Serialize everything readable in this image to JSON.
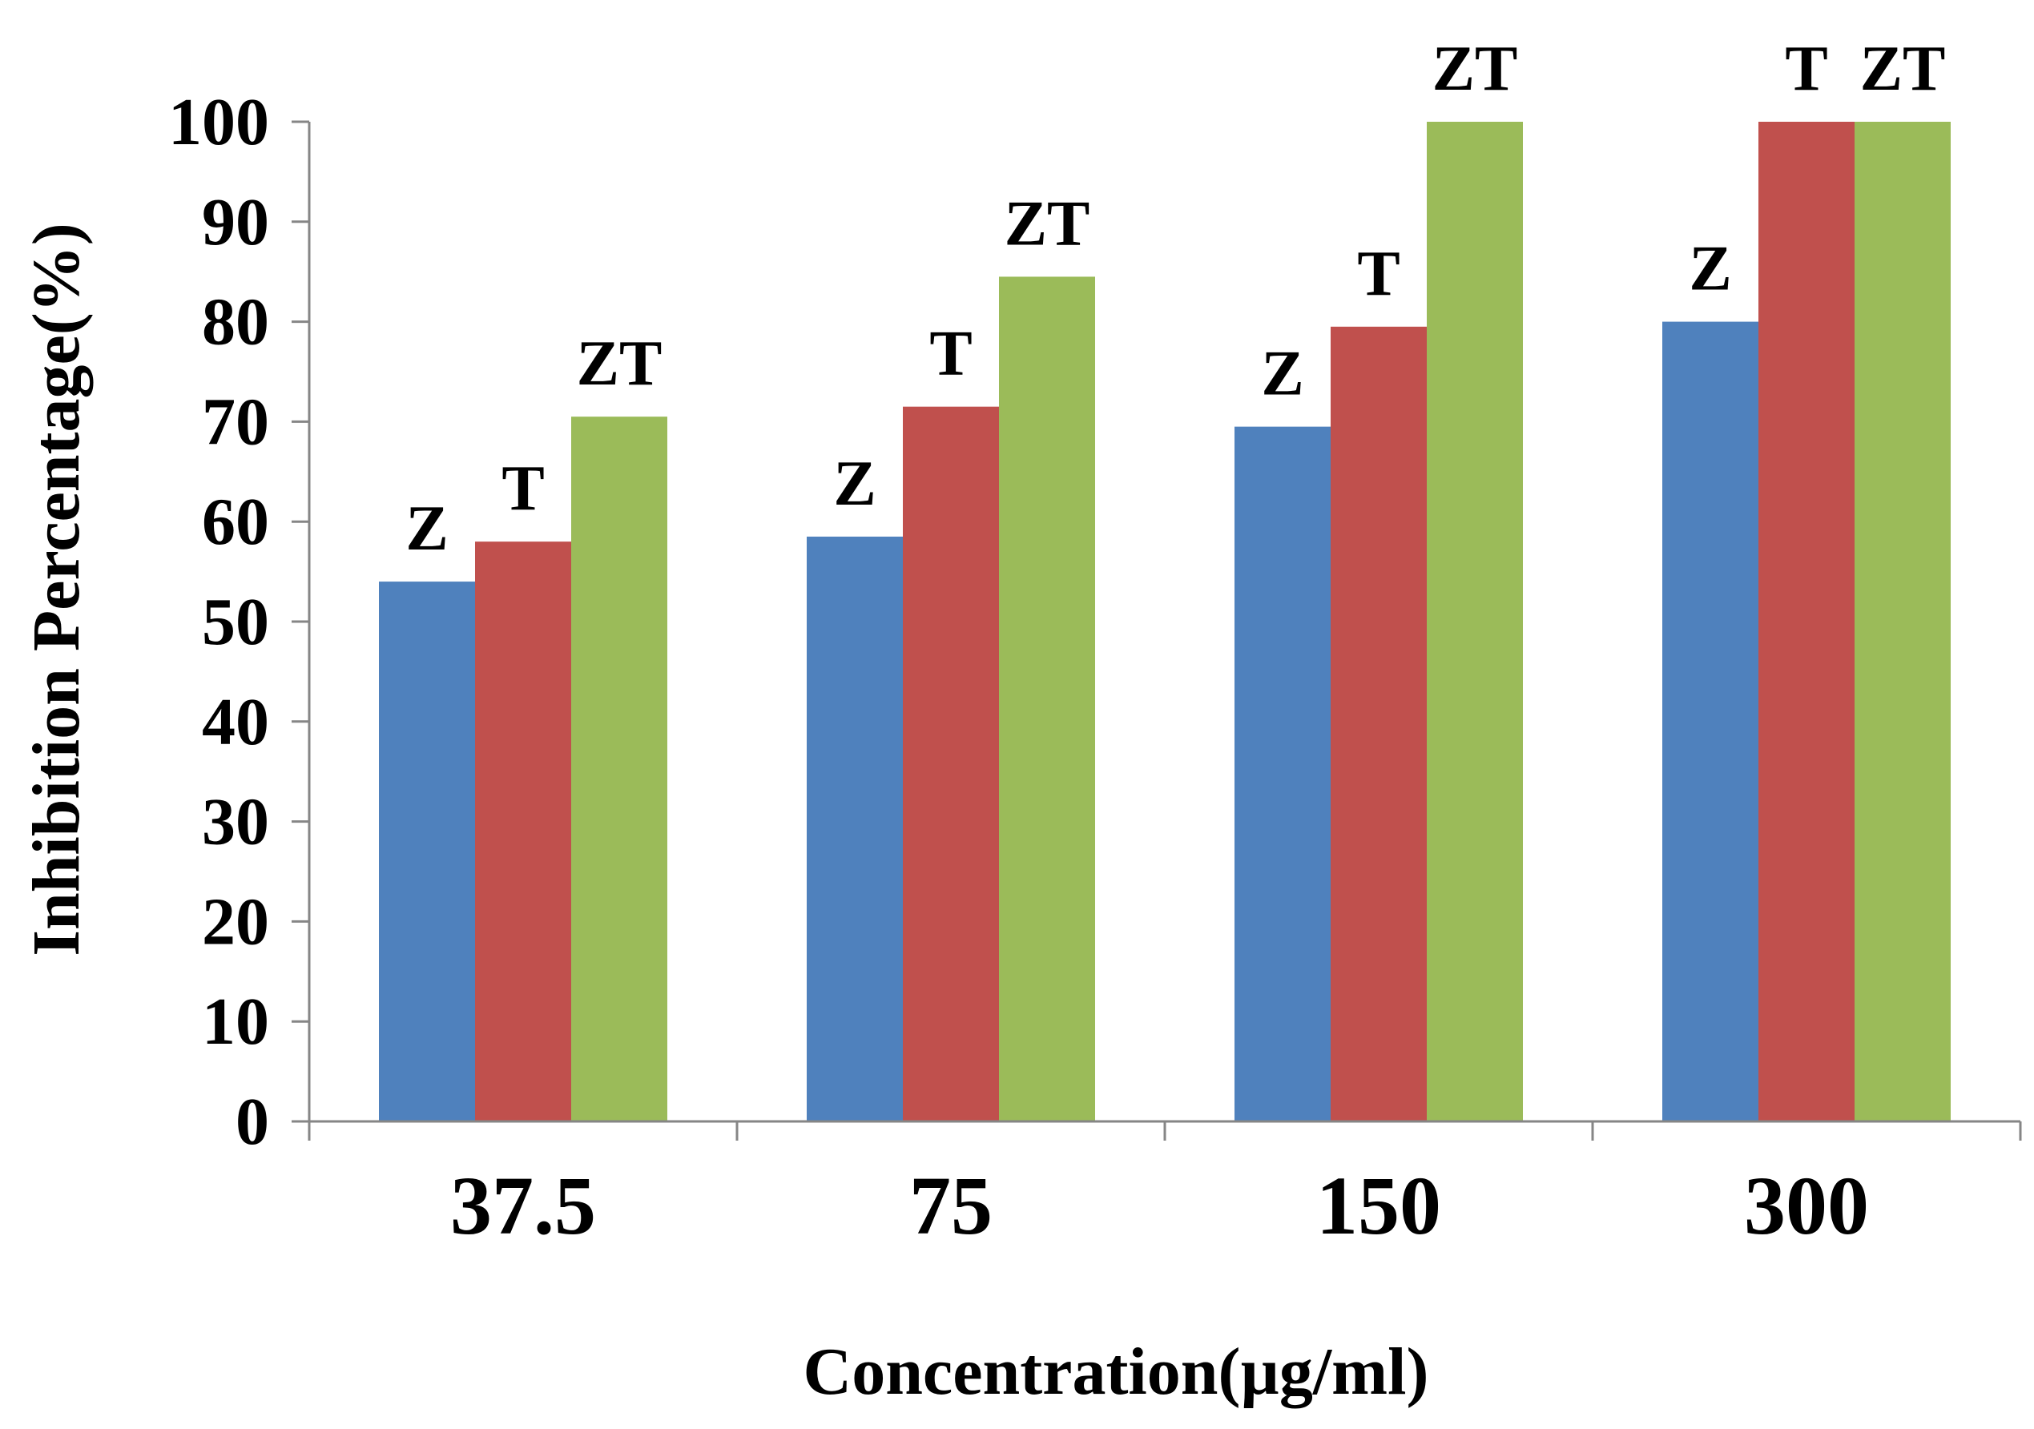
{
  "chart_data": {
    "type": "bar",
    "title": "",
    "xlabel": "Concentration(µg/ml)",
    "ylabel": "Inhibition Percentage(%)",
    "ylim": [
      0,
      100
    ],
    "yticks": [
      0,
      10,
      20,
      30,
      40,
      50,
      60,
      70,
      80,
      90,
      100
    ],
    "categories": [
      "37.5",
      "75",
      "150",
      "300"
    ],
    "series": [
      {
        "name": "Z",
        "color": "#4F81BD",
        "values": [
          54,
          58.5,
          69.5,
          80
        ]
      },
      {
        "name": "T",
        "color": "#C0504D",
        "values": [
          58,
          71.5,
          79.5,
          100
        ]
      },
      {
        "name": "ZT",
        "color": "#9BBB59",
        "values": [
          70.5,
          84.5,
          100,
          100
        ]
      }
    ],
    "legend": "none",
    "grid": false
  }
}
